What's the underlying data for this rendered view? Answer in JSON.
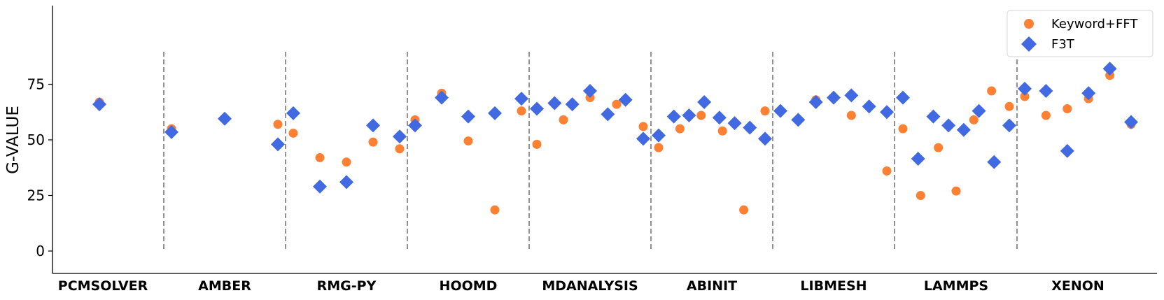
{
  "chart_data": {
    "type": "scatter",
    "title": "",
    "xlabel": "",
    "ylabel": "G-VALUE",
    "ylim": [
      -10,
      110
    ],
    "yticks": [
      0,
      25,
      50,
      75
    ],
    "grid": false,
    "legend_position": "top-right",
    "categories": [
      "PCMSOLVER",
      "AMBER",
      "RMG-PY",
      "HOOMD",
      "MDANALYSIS",
      "ABINIT",
      "LIBMESH",
      "LAMMPS",
      "XENON"
    ],
    "separators_between_categories": true,
    "series": [
      {
        "name": "Keyword+FFT",
        "marker": "circle",
        "color": "#fd8033",
        "groups": [
          [
            67
          ],
          [
            55,
            57
          ],
          [
            53,
            42,
            40,
            49,
            46
          ],
          [
            59,
            71,
            49.5,
            18.5,
            63
          ],
          [
            48,
            59,
            69,
            66,
            56
          ],
          [
            46.5,
            55,
            61,
            54,
            18.5,
            63
          ],
          [
            63,
            68,
            61,
            36
          ],
          [
            55,
            25,
            46.5,
            27,
            59,
            72,
            65
          ],
          [
            69.5,
            61,
            64,
            68.5,
            79,
            57
          ]
        ]
      },
      {
        "name": "F3T",
        "marker": "diamond",
        "color": "#4169e1",
        "groups": [
          [
            66
          ],
          [
            53.5,
            59.5,
            48
          ],
          [
            62,
            29,
            31,
            56.5,
            51.5
          ],
          [
            56.5,
            69,
            60.5,
            62,
            68.5
          ],
          [
            64,
            66.5,
            66,
            72,
            61.5,
            68,
            50.5
          ],
          [
            52,
            60.5,
            61,
            67,
            60,
            57.5,
            55.5,
            50.5
          ],
          [
            63,
            59,
            67,
            69,
            70,
            65,
            62.5
          ],
          [
            69,
            41.5,
            60.5,
            56.5,
            54.5,
            63,
            40,
            56.5
          ],
          [
            73,
            72,
            45,
            71,
            82,
            58
          ]
        ]
      }
    ]
  }
}
